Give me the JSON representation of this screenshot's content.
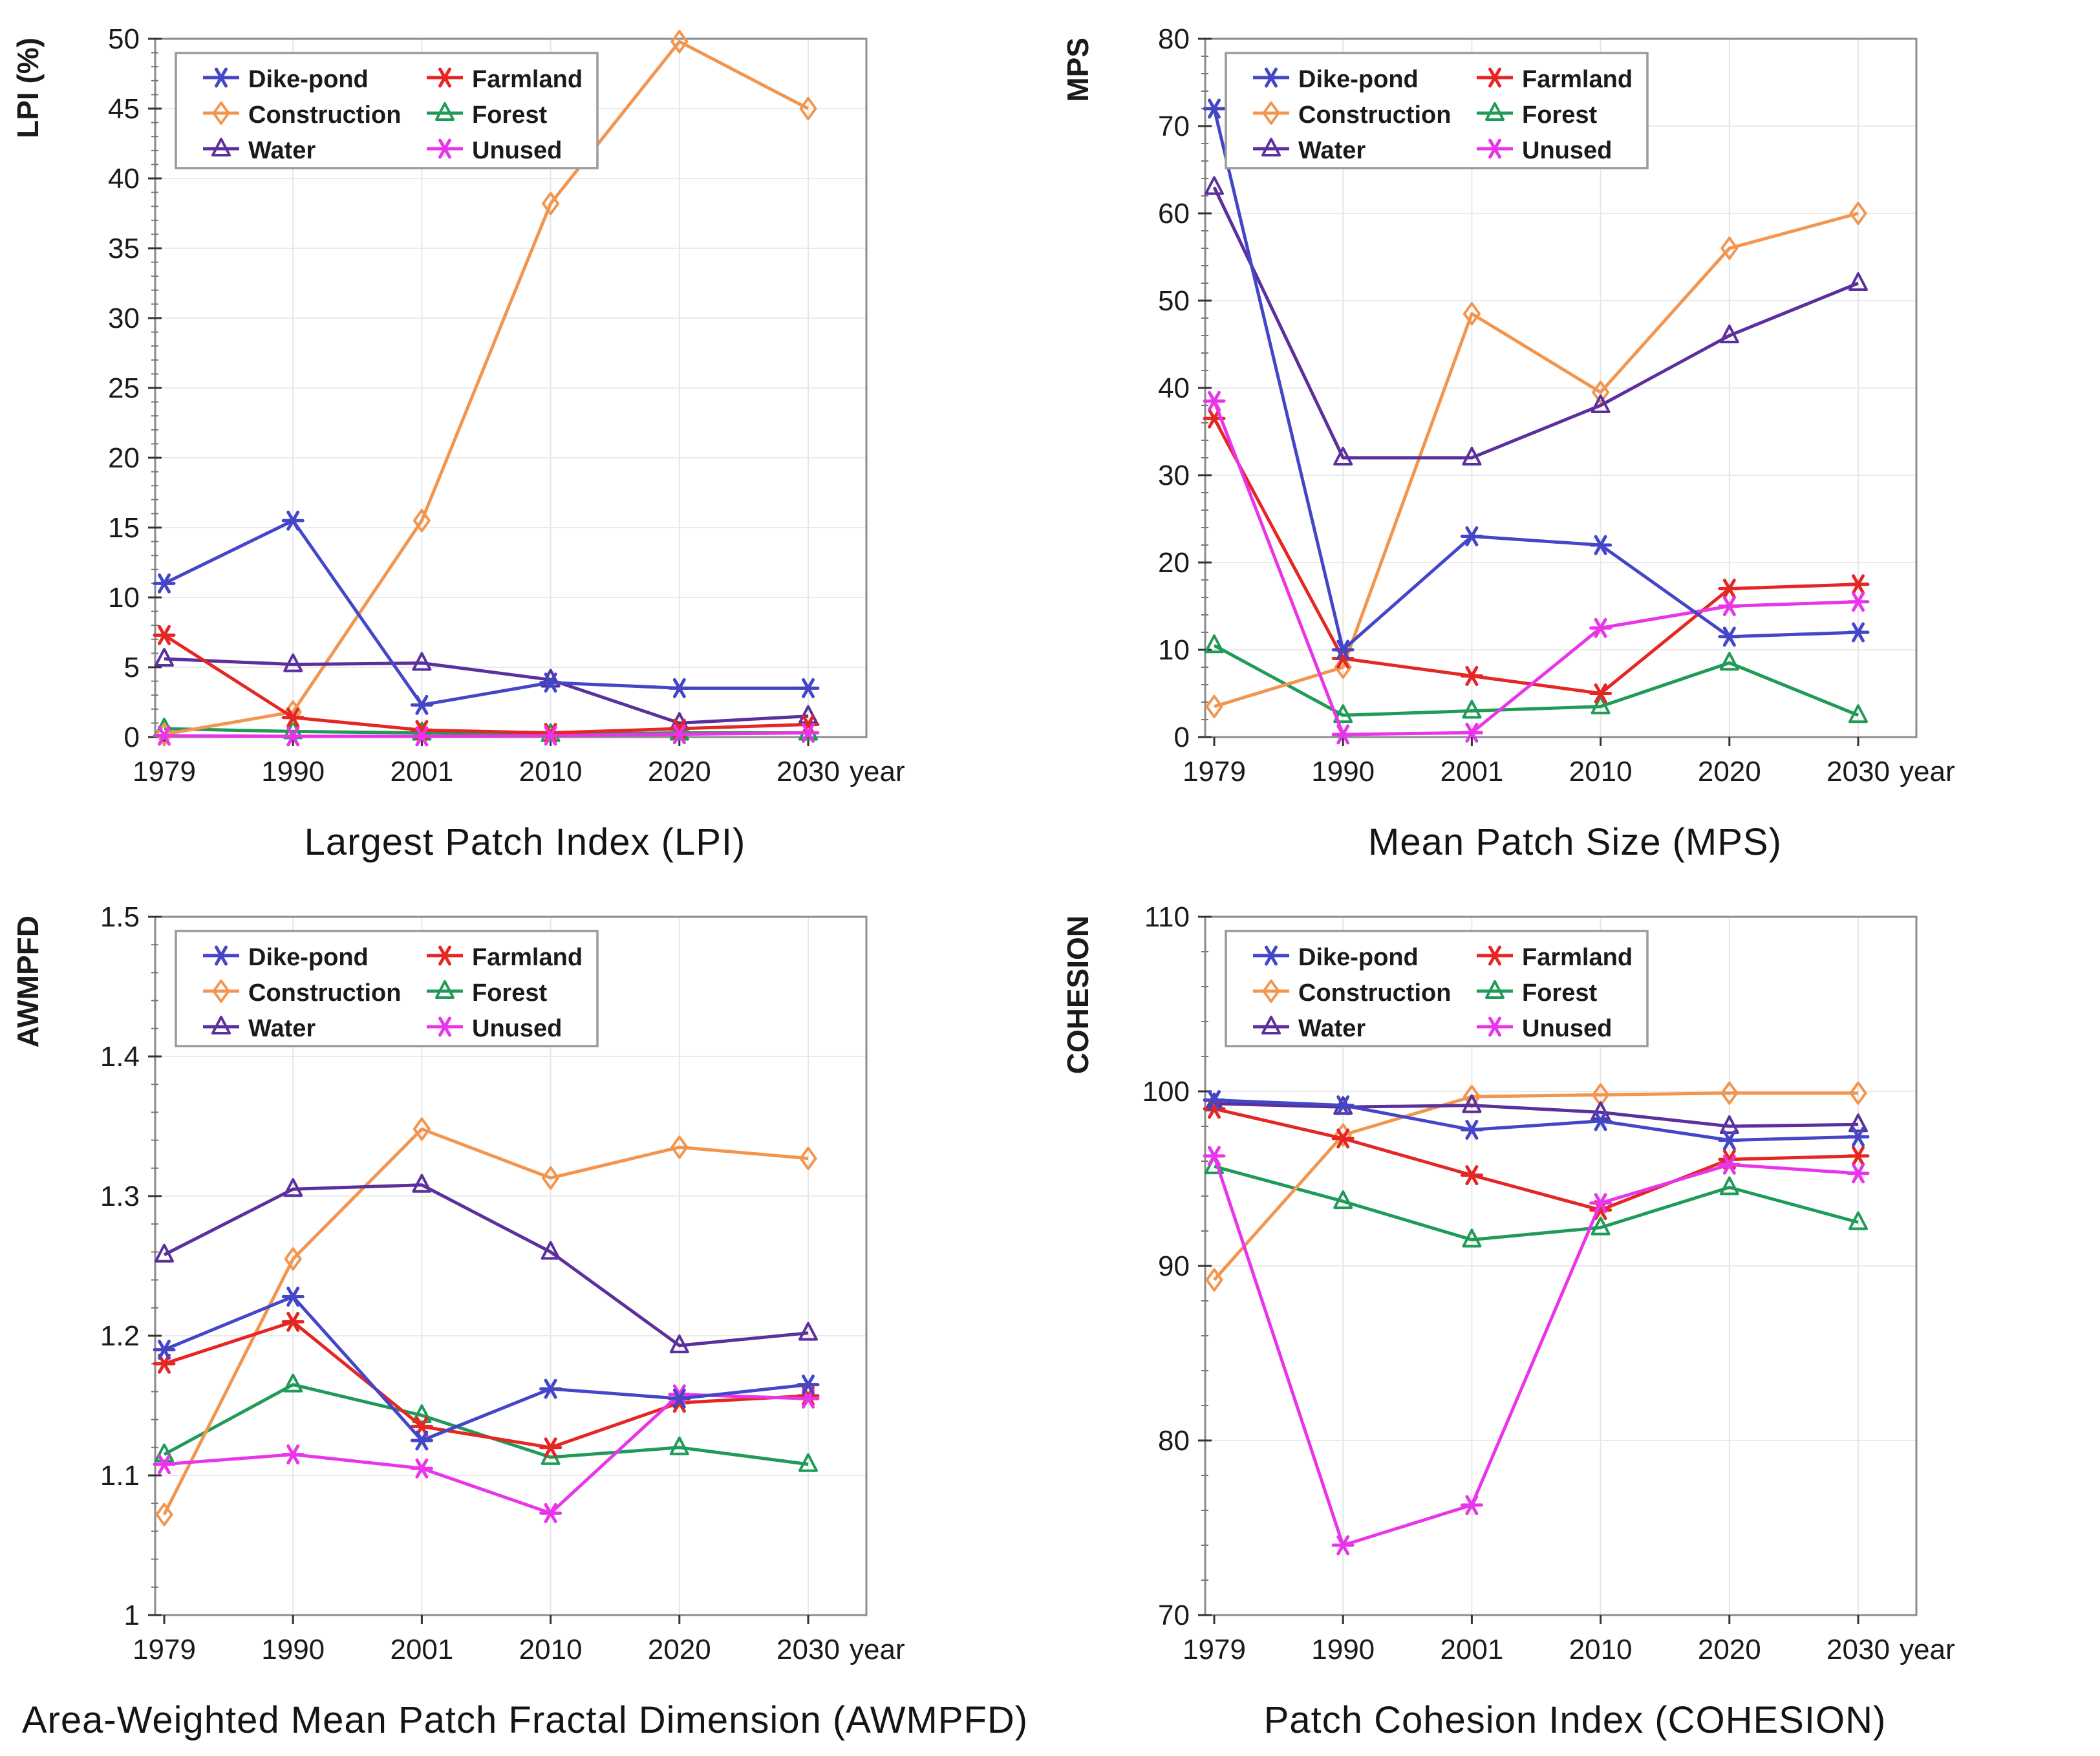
{
  "page": {
    "background": "#ffffff"
  },
  "series_styles": {
    "Dike-pond": {
      "color": "#4446c8",
      "marker": "asterisk"
    },
    "Construction": {
      "color": "#f2954e",
      "marker": "diamond"
    },
    "Water": {
      "color": "#5b2f9c",
      "marker": "triangle"
    },
    "Farmland": {
      "color": "#e52623",
      "marker": "asterisk"
    },
    "Forest": {
      "color": "#1f9b57",
      "marker": "triangle"
    },
    "Unused": {
      "color": "#e935e9",
      "marker": "asterisk"
    }
  },
  "chart_data": [
    {
      "type": "line",
      "title": "Largest Patch Index  (LPI)",
      "ylabel": "LPI  (%)",
      "ylim": [
        0,
        50
      ],
      "ytick_values": [
        0,
        5,
        10,
        15,
        20,
        25,
        30,
        35,
        40,
        45,
        50
      ],
      "yticklabels": [
        "0",
        "5",
        "10",
        "15",
        "20",
        "25",
        "30",
        "35",
        "40",
        "45",
        "50"
      ],
      "minor_step": 1,
      "categories": [
        "1979",
        "1990",
        "2001",
        "2010",
        "2020",
        "2030"
      ],
      "x_axis_suffix": "year",
      "grid": true,
      "legend_position": "top-left",
      "series": [
        {
          "name": "Dike-pond",
          "values": [
            11,
            15.5,
            2.3,
            3.9,
            3.5,
            3.5
          ]
        },
        {
          "name": "Construction",
          "values": [
            0.2,
            1.8,
            15.5,
            38.2,
            49.8,
            45
          ]
        },
        {
          "name": "Water",
          "values": [
            5.6,
            5.2,
            5.3,
            4.1,
            1.0,
            1.5
          ]
        },
        {
          "name": "Farmland",
          "values": [
            7.3,
            1.4,
            0.5,
            0.3,
            0.6,
            0.9
          ]
        },
        {
          "name": "Forest",
          "values": [
            0.6,
            0.4,
            0.3,
            0.2,
            0.3,
            0.3
          ]
        },
        {
          "name": "Unused",
          "values": [
            0.1,
            0.05,
            0.05,
            0.1,
            0.2,
            0.3
          ]
        }
      ]
    },
    {
      "type": "line",
      "title": "Mean Patch Size  (MPS)",
      "ylabel": "MPS",
      "ylim": [
        0,
        80
      ],
      "ytick_values": [
        0,
        10,
        20,
        30,
        40,
        50,
        60,
        70,
        80
      ],
      "yticklabels": [
        "0",
        "10",
        "20",
        "30",
        "40",
        "50",
        "60",
        "70",
        "80"
      ],
      "minor_step": 2,
      "categories": [
        "1979",
        "1990",
        "2001",
        "2010",
        "2020",
        "2030"
      ],
      "x_axis_suffix": "year",
      "grid": true,
      "legend_position": "top-left",
      "series": [
        {
          "name": "Dike-pond",
          "values": [
            72,
            10,
            23,
            22,
            11.5,
            12
          ]
        },
        {
          "name": "Construction",
          "values": [
            3.5,
            8,
            48.5,
            39.5,
            56,
            60
          ]
        },
        {
          "name": "Water",
          "values": [
            63,
            32,
            32,
            38,
            46,
            52
          ]
        },
        {
          "name": "Farmland",
          "values": [
            36.5,
            9,
            7,
            5,
            17,
            17.5
          ]
        },
        {
          "name": "Forest",
          "values": [
            10.5,
            2.5,
            3,
            3.5,
            8.5,
            2.5
          ]
        },
        {
          "name": "Unused",
          "values": [
            38.5,
            0.3,
            0.5,
            12.5,
            15,
            15.5
          ]
        }
      ]
    },
    {
      "type": "line",
      "title": "Area-Weighted Mean Patch Fractal Dimension  (AWMPFD)",
      "ylabel": "AWMPFD",
      "ylim": [
        1,
        1.5
      ],
      "ytick_values": [
        1,
        1.1,
        1.2,
        1.3,
        1.4,
        1.5
      ],
      "yticklabels": [
        "1",
        "1.1",
        "1.2",
        "1.3",
        "1.4",
        "1.5"
      ],
      "minor_step": 0.02,
      "categories": [
        "1979",
        "1990",
        "2001",
        "2010",
        "2020",
        "2030"
      ],
      "x_axis_suffix": "year",
      "grid": true,
      "legend_position": "top-left",
      "series": [
        {
          "name": "Dike-pond",
          "values": [
            1.19,
            1.228,
            1.125,
            1.162,
            1.155,
            1.165
          ]
        },
        {
          "name": "Construction",
          "values": [
            1.072,
            1.255,
            1.348,
            1.313,
            1.335,
            1.327
          ]
        },
        {
          "name": "Water",
          "values": [
            1.258,
            1.305,
            1.308,
            1.26,
            1.193,
            1.202
          ]
        },
        {
          "name": "Farmland",
          "values": [
            1.18,
            1.21,
            1.135,
            1.12,
            1.152,
            1.157
          ]
        },
        {
          "name": "Forest",
          "values": [
            1.115,
            1.165,
            1.143,
            1.113,
            1.12,
            1.108
          ]
        },
        {
          "name": "Unused",
          "values": [
            1.108,
            1.115,
            1.105,
            1.073,
            1.158,
            1.155
          ]
        }
      ]
    },
    {
      "type": "line",
      "title": "Patch Cohesion Index   (COHESION)",
      "ylabel": "COHESION",
      "ylim": [
        70,
        110
      ],
      "ytick_values": [
        70,
        80,
        90,
        100,
        110
      ],
      "yticklabels": [
        "70",
        "80",
        "90",
        "100",
        "110"
      ],
      "minor_step": 2,
      "categories": [
        "1979",
        "1990",
        "2001",
        "2010",
        "2020",
        "2030"
      ],
      "x_axis_suffix": "year",
      "grid": true,
      "legend_position": "top-left",
      "series": [
        {
          "name": "Dike-pond",
          "values": [
            99.5,
            99.2,
            97.8,
            98.3,
            97.2,
            97.4
          ]
        },
        {
          "name": "Construction",
          "values": [
            89.2,
            97.5,
            99.7,
            99.8,
            99.9,
            99.9
          ]
        },
        {
          "name": "Water",
          "values": [
            99.3,
            99.1,
            99.2,
            98.8,
            98.0,
            98.1
          ]
        },
        {
          "name": "Farmland",
          "values": [
            99.0,
            97.3,
            95.2,
            93.2,
            96.1,
            96.3
          ]
        },
        {
          "name": "Forest",
          "values": [
            95.7,
            93.7,
            91.5,
            92.2,
            94.5,
            92.5
          ]
        },
        {
          "name": "Unused",
          "values": [
            96.3,
            74.0,
            76.3,
            93.6,
            95.8,
            95.3
          ]
        }
      ]
    }
  ]
}
